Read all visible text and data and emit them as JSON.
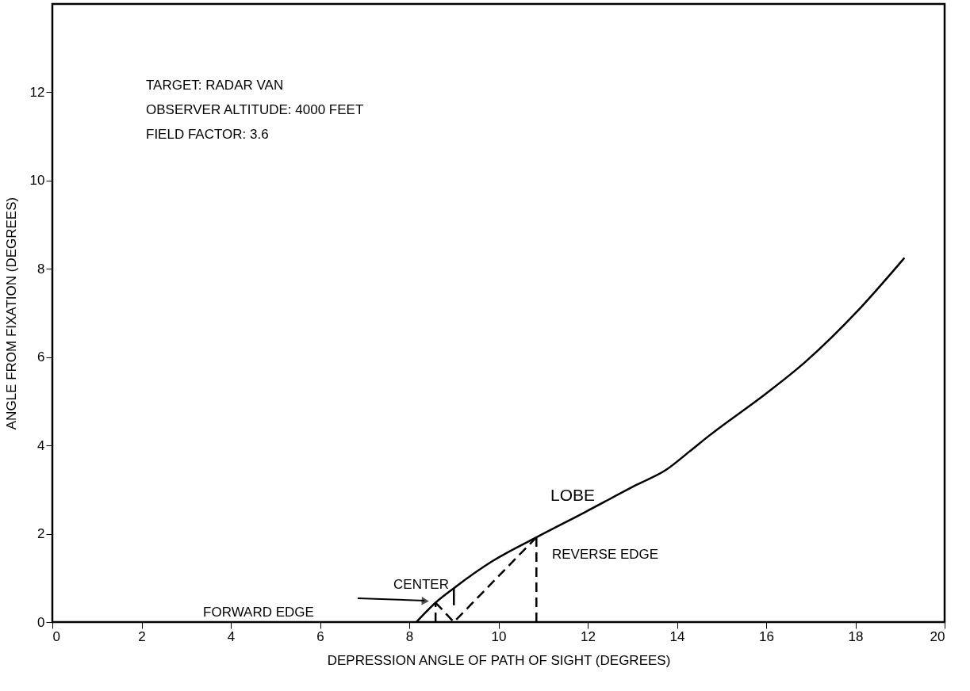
{
  "chart_data": {
    "type": "line",
    "xlabel": "DEPRESSION ANGLE OF PATH OF SIGHT    (DEGREES)",
    "ylabel": "ANGLE FROM FIXATION  (DEGREES)",
    "xlim": [
      0,
      20
    ],
    "xticks": [
      0,
      2,
      4,
      6,
      8,
      10,
      12,
      14,
      16,
      18,
      20
    ],
    "ylim": [
      0,
      14
    ],
    "yticks": [
      0,
      2,
      4,
      6,
      8,
      10,
      12
    ],
    "grid": false,
    "marker": "none",
    "series": [
      {
        "color": "#000000",
        "line_style": "solid",
        "x": [
          8.16,
          8.59,
          8.99,
          9.88,
          10.85,
          11.94,
          13.1,
          13.76,
          14.29,
          14.72,
          15.99,
          16.76,
          18.07,
          19.1
        ],
        "values": [
          0.0,
          0.44,
          0.76,
          1.39,
          1.92,
          2.49,
          3.11,
          3.45,
          3.87,
          4.22,
          5.17,
          5.79,
          7.07,
          8.25
        ]
      },
      {
        "color": "#000000",
        "line_style": "dashed",
        "x": [
          8.59,
          8.59
        ],
        "values": [
          0,
          0.44
        ]
      },
      {
        "color": "#000000",
        "line_style": "dashed",
        "x": [
          8.59,
          9.0,
          10.85
        ],
        "values": [
          0.44,
          0,
          1.92
        ]
      },
      {
        "color": "#000000",
        "line_style": "dashed",
        "x": [
          10.85,
          10.85
        ],
        "values": [
          0,
          1.92
        ]
      },
      {
        "color": "#000000",
        "line_style": "solid",
        "x": [
          9.0,
          9.0
        ],
        "values": [
          0.38,
          0.76
        ]
      }
    ],
    "annotations": [
      "TARGET: RADAR VAN",
      "OBSERVER  ALTITUDE: 4000 FEET",
      "FIELD FACTOR: 3.6",
      "FORWARD EDGE",
      "CENTER",
      "REVERSE  EDGE",
      "LOBE"
    ]
  }
}
